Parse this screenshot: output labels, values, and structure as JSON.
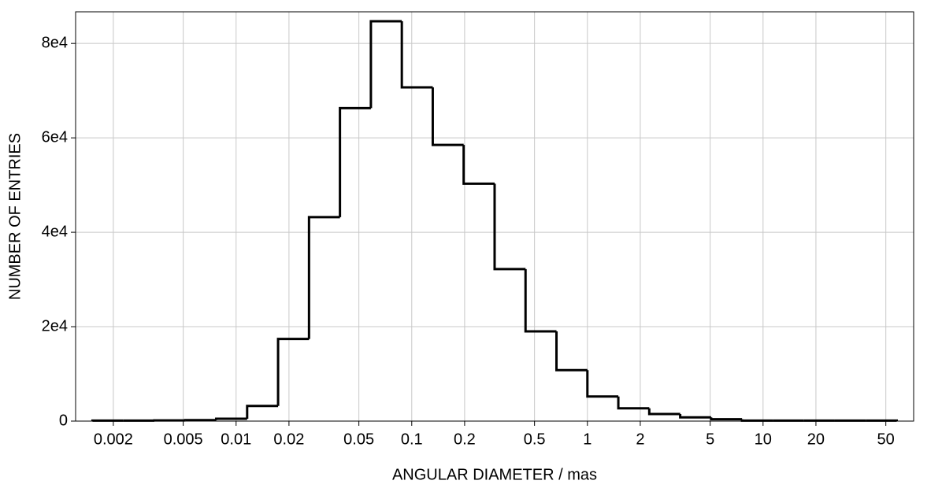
{
  "chart_data": {
    "type": "histogram",
    "x_label": "ANGULAR DIAMETER / mas",
    "y_label": "NUMBER OF ENTRIES",
    "bins": [
      0.001522,
      0.002284,
      0.003426,
      0.005139,
      0.007707,
      0.01156,
      0.01734,
      0.02601,
      0.03902,
      0.05853,
      0.08779,
      0.1317,
      0.1975,
      0.2963,
      0.4444,
      0.6667,
      1,
      1.5,
      2.25,
      3.375,
      5.0625,
      7.594,
      11.39,
      17.09,
      25.63,
      38.44,
      57.67
    ],
    "values": [
      100,
      100,
      150,
      200,
      500,
      3200,
      17400,
      43200,
      66300,
      84700,
      70700,
      58500,
      50300,
      32200,
      19000,
      10800,
      5200,
      2700,
      1500,
      800,
      400,
      100,
      100,
      100,
      100,
      100
    ],
    "color": "#000000",
    "xlog": true,
    "xlim": [
      0.00122,
      72
    ],
    "ylim": [
      0,
      86700
    ],
    "xticks": [
      0.002,
      0.005,
      0.01,
      0.02,
      0.05,
      0.1,
      0.2,
      0.5,
      1,
      2,
      5,
      10,
      20,
      50
    ],
    "yticks": [
      0,
      {
        "value": 20000,
        "label": "2e4"
      },
      {
        "value": 40000,
        "label": "4e4"
      },
      {
        "value": 60000,
        "label": "6e4"
      },
      {
        "value": 80000,
        "label": "8e4"
      }
    ],
    "grid": true
  }
}
